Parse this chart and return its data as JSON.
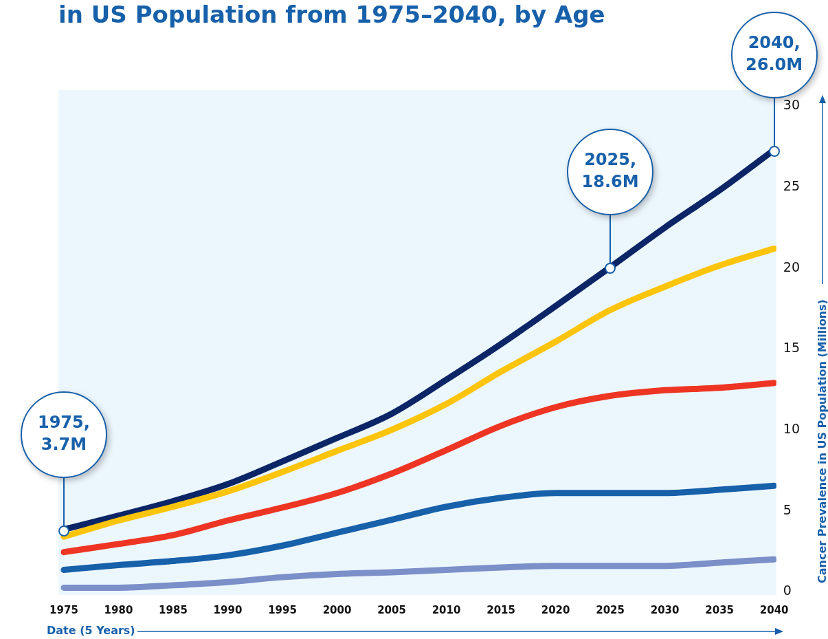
{
  "chart_data": {
    "type": "line",
    "title": "in US Population from 1975–2040, by Age",
    "xlabel": "Date (5 Years)",
    "ylabel": "Cancer Prevalence in US Population (Millions)",
    "x": [
      1975,
      1980,
      1985,
      1990,
      1995,
      2000,
      2005,
      2010,
      2015,
      2020,
      2025,
      2030,
      2035,
      2040
    ],
    "series": [
      {
        "color": "#0b2566",
        "values": [
          3.85,
          4.7,
          5.6,
          6.65,
          8.05,
          9.5,
          11.0,
          13.1,
          15.3,
          17.65,
          20.05,
          22.5,
          24.8,
          27.3
        ]
      },
      {
        "color": "#fdc40c",
        "values": [
          3.4,
          4.4,
          5.25,
          6.2,
          7.4,
          8.7,
          10.0,
          11.6,
          13.6,
          15.45,
          17.4,
          18.85,
          20.15,
          21.2
        ]
      },
      {
        "color": "#ee3524",
        "values": [
          2.45,
          2.95,
          3.5,
          4.4,
          5.2,
          6.1,
          7.3,
          8.75,
          10.25,
          11.4,
          12.1,
          12.45,
          12.6,
          12.9
        ]
      },
      {
        "color": "#1760aa",
        "values": [
          1.35,
          1.65,
          1.9,
          2.25,
          2.85,
          3.65,
          4.45,
          5.25,
          5.8,
          6.1,
          6.1,
          6.1,
          6.3,
          6.55
        ]
      },
      {
        "color": "#7b8fc8",
        "values": [
          0.25,
          0.25,
          0.4,
          0.6,
          0.9,
          1.1,
          1.2,
          1.35,
          1.5,
          1.6,
          1.6,
          1.6,
          1.8,
          2.0
        ]
      }
    ],
    "xlim": [
      1974.5,
      2040.2
    ],
    "xticks": [
      1975,
      1980,
      1985,
      1990,
      1995,
      2000,
      2005,
      2010,
      2015,
      2020,
      2025,
      2030,
      2035,
      2040
    ],
    "ylim": [
      -0.2,
      31
    ],
    "yticks": [
      0,
      5,
      10,
      15,
      20,
      25,
      30
    ],
    "grid": false,
    "legend": false,
    "marker": "none",
    "line_style": "solid",
    "annotations": [
      "1975, 3.7M",
      "2025, 18.6M",
      "2040, 26.0M"
    ]
  }
}
